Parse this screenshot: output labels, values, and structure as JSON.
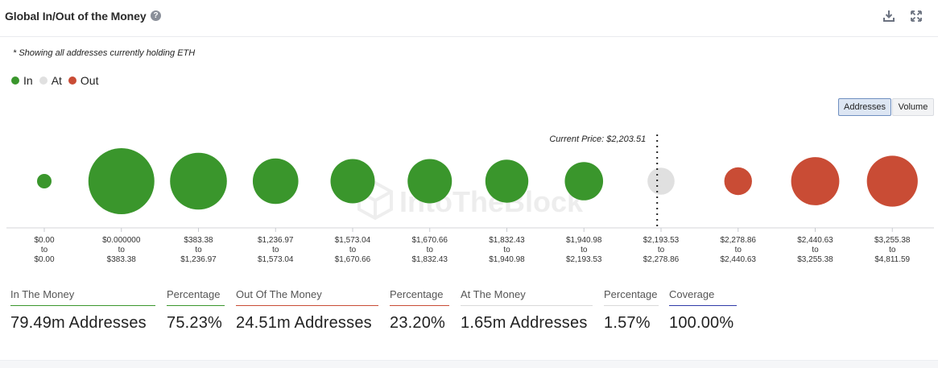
{
  "header": {
    "title": "Global In/Out of the Money",
    "help_glyph": "?"
  },
  "note": "* Showing all addresses currently holding ETH",
  "legend": [
    {
      "label": "In",
      "color": "#3a962c"
    },
    {
      "label": "At",
      "color": "#e0e0e0"
    },
    {
      "label": "Out",
      "color": "#c94c35"
    }
  ],
  "toggles": {
    "addresses": "Addresses",
    "volume": "Volume"
  },
  "watermark": "IntoTheBlock",
  "chart_data": {
    "type": "bubble",
    "title": "Global In/Out of the Money",
    "current_price_label": "Current Price: $2,203.51",
    "current_price": 2203.51,
    "current_price_after_bucket": 7,
    "to_word": "to",
    "buckets": [
      {
        "low": "$0.00",
        "high": "$0.00",
        "status": "in",
        "size": 0.22
      },
      {
        "low": "$0.000000",
        "high": "$383.38",
        "status": "in",
        "size": 1.0
      },
      {
        "low": "$383.38",
        "high": "$1,236.97",
        "status": "in",
        "size": 0.86
      },
      {
        "low": "$1,236.97",
        "high": "$1,573.04",
        "status": "in",
        "size": 0.69
      },
      {
        "low": "$1,573.04",
        "high": "$1,670.66",
        "status": "in",
        "size": 0.67
      },
      {
        "low": "$1,670.66",
        "high": "$1,832.43",
        "status": "in",
        "size": 0.67
      },
      {
        "low": "$1,832.43",
        "high": "$1,940.98",
        "status": "in",
        "size": 0.65
      },
      {
        "low": "$1,940.98",
        "high": "$2,193.53",
        "status": "in",
        "size": 0.58
      },
      {
        "low": "$2,193.53",
        "high": "$2,278.86",
        "status": "at",
        "size": 0.41
      },
      {
        "low": "$2,278.86",
        "high": "$2,440.63",
        "status": "out",
        "size": 0.42
      },
      {
        "low": "$2,440.63",
        "high": "$3,255.38",
        "status": "out",
        "size": 0.73
      },
      {
        "low": "$3,255.38",
        "high": "$4,811.59",
        "status": "out",
        "size": 0.77
      }
    ]
  },
  "stats": [
    {
      "label": "In The Money",
      "value": "79.49m Addresses",
      "color": "#3a962c"
    },
    {
      "label": "Percentage",
      "value": "75.23%",
      "color": "#3a962c"
    },
    {
      "label": "Out Of The Money",
      "value": "24.51m Addresses",
      "color": "#c94c35"
    },
    {
      "label": "Percentage",
      "value": "23.20%",
      "color": "#c94c35"
    },
    {
      "label": "At The Money",
      "value": "1.65m Addresses",
      "color": "#d9d9d9"
    },
    {
      "label": "Percentage",
      "value": "1.57%",
      "color": "#d9d9d9"
    },
    {
      "label": "Coverage",
      "value": "100.00%",
      "color": "#2f3aa8"
    }
  ]
}
